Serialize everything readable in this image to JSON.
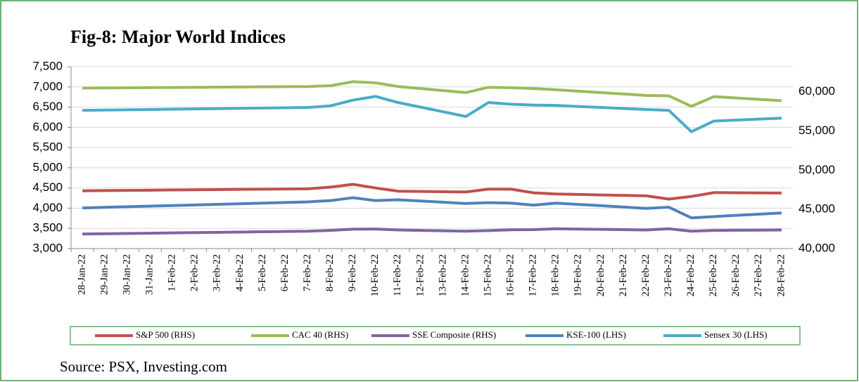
{
  "chart_data": {
    "type": "line",
    "title": "Fig-8: Major World Indices",
    "source": "Source: PSX, Investing.com",
    "categories": [
      "28-Jan-22",
      "29-Jan-22",
      "30-Jan-22",
      "31-Jan-22",
      "1-Feb-22",
      "2-Feb-22",
      "3-Feb-22",
      "4-Feb-22",
      "5-Feb-22",
      "6-Feb-22",
      "7-Feb-22",
      "8-Feb-22",
      "9-Feb-22",
      "10-Feb-22",
      "11-Feb-22",
      "12-Feb-22",
      "13-Feb-22",
      "14-Feb-22",
      "15-Feb-22",
      "16-Feb-22",
      "17-Feb-22",
      "18-Feb-22",
      "19-Feb-22",
      "20-Feb-22",
      "21-Feb-22",
      "22-Feb-22",
      "23-Feb-22",
      "24-Feb-22",
      "25-Feb-22",
      "26-Feb-22",
      "27-Feb-22",
      "28-Feb-22"
    ],
    "series": [
      {
        "name": "S&P 500 (RHS)",
        "color": "#c0504d",
        "axis": "y",
        "values": [
          4430,
          4435,
          4440,
          4445,
          4450,
          4455,
          4460,
          4465,
          4470,
          4475,
          4480,
          4520,
          4590,
          4500,
          4420,
          4413,
          4407,
          4400,
          4470,
          4470,
          4380,
          4350,
          4339,
          4328,
          4316,
          4305,
          4225,
          4290,
          4385,
          4382,
          4378,
          4375
        ]
      },
      {
        "name": "CAC 40 (RHS)",
        "color": "#9bbb59",
        "axis": "y",
        "values": [
          6970,
          6974,
          6978,
          6982,
          6986,
          6990,
          6994,
          6998,
          7002,
          7006,
          7010,
          7030,
          7130,
          7100,
          7010,
          6960,
          6910,
          6860,
          6990,
          6980,
          6960,
          6930,
          6895,
          6860,
          6825,
          6790,
          6780,
          6520,
          6760,
          6727,
          6693,
          6660
        ]
      },
      {
        "name": "SSE Composite (RHS)",
        "color": "#8064a2",
        "axis": "y",
        "values": [
          3360,
          3367,
          3374,
          3381,
          3388,
          3395,
          3402,
          3409,
          3416,
          3423,
          3430,
          3450,
          3480,
          3485,
          3460,
          3450,
          3440,
          3430,
          3445,
          3465,
          3468,
          3490,
          3483,
          3475,
          3468,
          3460,
          3490,
          3430,
          3450,
          3453,
          3457,
          3460
        ]
      },
      {
        "name": "KSE-100 (LHS)",
        "color": "#4f81bd",
        "axis": "y2",
        "values": [
          45180,
          45258,
          45336,
          45414,
          45492,
          45570,
          45648,
          45726,
          45804,
          45882,
          45960,
          46120,
          46490,
          46120,
          46230,
          46070,
          45910,
          45750,
          45860,
          45800,
          45540,
          45800,
          45630,
          45470,
          45300,
          45130,
          45280,
          43920,
          44080,
          44240,
          44390,
          44550
        ]
      },
      {
        "name": "Sensex 30 (LHS)",
        "color": "#4bacc6",
        "axis": "y2",
        "values": [
          57630,
          57667,
          57704,
          57741,
          57778,
          57815,
          57852,
          57889,
          57926,
          57963,
          58000,
          58210,
          58940,
          59410,
          58630,
          58040,
          57450,
          56850,
          58630,
          58420,
          58310,
          58260,
          58130,
          58000,
          57870,
          57740,
          57630,
          54910,
          56270,
          56390,
          56520,
          56640
        ]
      }
    ],
    "ylim": [
      3000,
      7500
    ],
    "yticks": [
      {
        "value": 3000,
        "label": "3,000"
      },
      {
        "value": 3500,
        "label": "3,500"
      },
      {
        "value": 4000,
        "label": "4,000"
      },
      {
        "value": 4500,
        "label": "4,500"
      },
      {
        "value": 5000,
        "label": "5,000"
      },
      {
        "value": 5500,
        "label": "5,500"
      },
      {
        "value": 6000,
        "label": "6,000"
      },
      {
        "value": 6500,
        "label": "6,500"
      },
      {
        "value": 7000,
        "label": "7,000"
      },
      {
        "value": 7500,
        "label": "7,500"
      }
    ],
    "y2lim": [
      40000,
      63200
    ],
    "y2ticks": [
      {
        "value": 40000,
        "label": "40,000"
      },
      {
        "value": 45000,
        "label": "45,000"
      },
      {
        "value": 50000,
        "label": "50,000"
      },
      {
        "value": 55000,
        "label": "55,000"
      },
      {
        "value": 60000,
        "label": "60,000"
      }
    ],
    "grid": true,
    "legend": "bottom"
  }
}
